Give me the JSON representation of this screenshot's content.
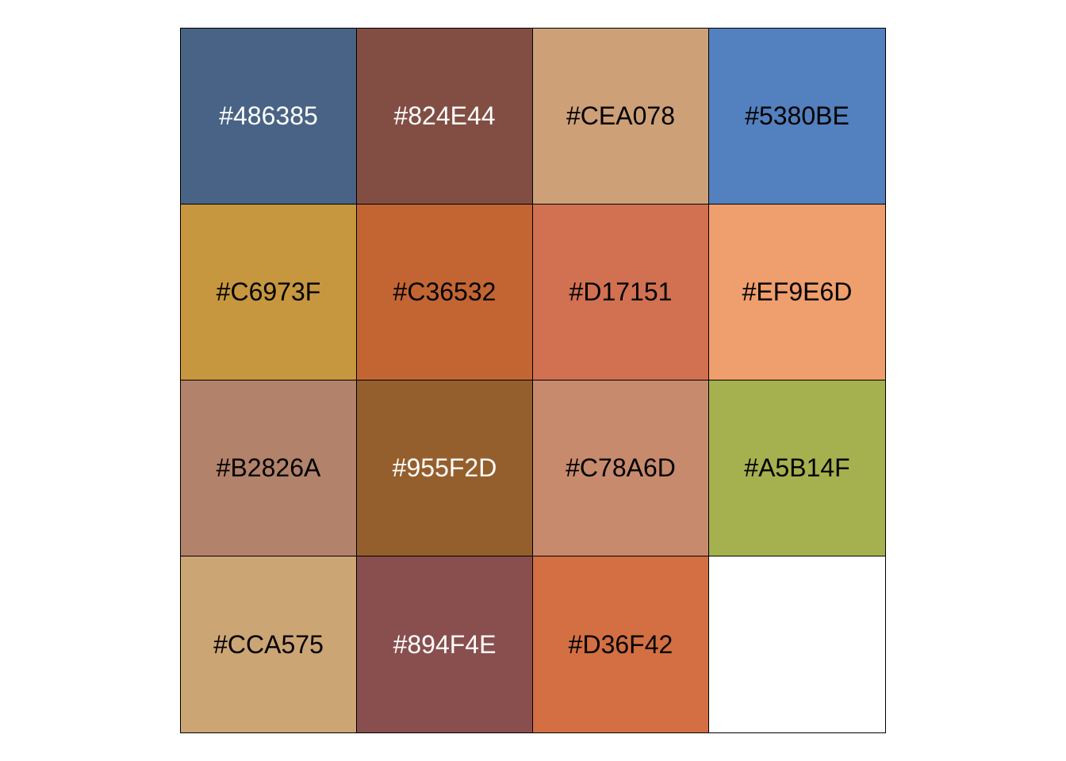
{
  "swatches": [
    {
      "label": "#486385",
      "color": "#486385",
      "text_color": "#ffffff"
    },
    {
      "label": "#824E44",
      "color": "#824E44",
      "text_color": "#ffffff"
    },
    {
      "label": "#CEA078",
      "color": "#CEA078",
      "text_color": "#000000"
    },
    {
      "label": "#5380BE",
      "color": "#5380BE",
      "text_color": "#000000"
    },
    {
      "label": "#C6973F",
      "color": "#C6973F",
      "text_color": "#000000"
    },
    {
      "label": "#C36532",
      "color": "#C36532",
      "text_color": "#000000"
    },
    {
      "label": "#D17151",
      "color": "#D17151",
      "text_color": "#000000"
    },
    {
      "label": "#EF9E6D",
      "color": "#EF9E6D",
      "text_color": "#000000"
    },
    {
      "label": "#B2826A",
      "color": "#B2826A",
      "text_color": "#000000"
    },
    {
      "label": "#955F2D",
      "color": "#955F2D",
      "text_color": "#ffffff"
    },
    {
      "label": "#C78A6D",
      "color": "#C78A6D",
      "text_color": "#000000"
    },
    {
      "label": "#A5B14F",
      "color": "#A5B14F",
      "text_color": "#000000"
    },
    {
      "label": "#CCA575",
      "color": "#CCA575",
      "text_color": "#000000"
    },
    {
      "label": "#894F4E",
      "color": "#894F4E",
      "text_color": "#ffffff"
    },
    {
      "label": "#D36F42",
      "color": "#D36F42",
      "text_color": "#000000"
    },
    {
      "label": "",
      "color": "#FFFFFF",
      "text_color": "#000000"
    }
  ]
}
